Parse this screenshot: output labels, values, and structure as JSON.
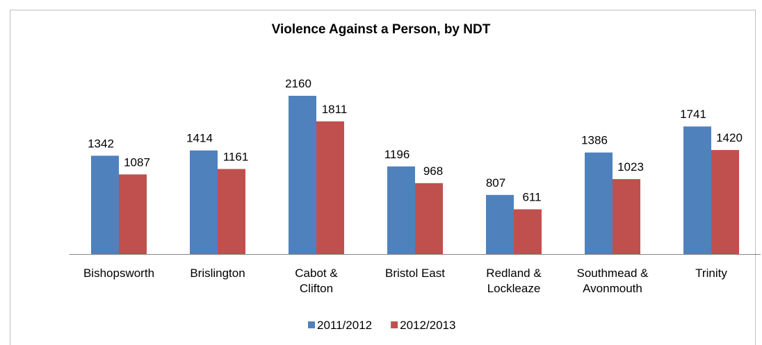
{
  "chart_data": {
    "type": "bar",
    "title": "Violence Against a Person, by NDT",
    "categories": [
      "Bishopsworth",
      "Brislington",
      "Cabot &\nClifton",
      "Bristol East",
      "Redland &\nLockleaze",
      "Southmead &\nAvonmouth",
      "Trinity"
    ],
    "series": [
      {
        "name": "2011/2012",
        "color": "#4f81bd",
        "values": [
          1342,
          1414,
          2160,
          1196,
          807,
          1386,
          1741
        ]
      },
      {
        "name": "2012/2013",
        "color": "#c0504d",
        "values": [
          1087,
          1161,
          1811,
          968,
          611,
          1023,
          1420
        ]
      }
    ],
    "legend": "bottom"
  }
}
